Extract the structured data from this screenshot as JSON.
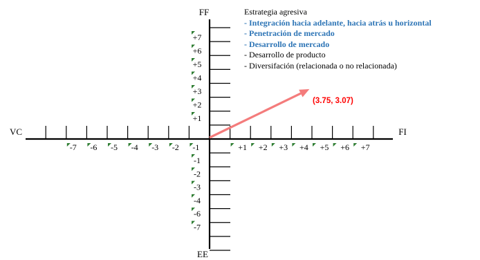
{
  "axes": {
    "top_label": "FF",
    "bottom_label": "EE",
    "left_label": "VC",
    "right_label": "FI",
    "x_positive_ticks": [
      "+1",
      "+2",
      "+3",
      "+4",
      "+5",
      "+6",
      "+7"
    ],
    "x_negative_ticks": [
      "-1",
      "-2",
      "-3",
      "-4",
      "-5",
      "-6",
      "-7"
    ],
    "y_positive_ticks": [
      "+1",
      "+2",
      "+3",
      "+4",
      "+5",
      "+6",
      "+7"
    ],
    "y_negative_ticks": [
      "-1",
      "-2",
      "-3",
      "-4",
      "-6",
      "-7"
    ]
  },
  "strategies": {
    "title": "Estrategia agresiva",
    "items": [
      {
        "text": "- Integración hacia adelante, hacia atrás u horizontal",
        "color": "#2E75B6",
        "bold": true
      },
      {
        "text": "- Penetración de mercado",
        "color": "#2E75B6",
        "bold": true
      },
      {
        "text": "- Desarrollo de mercado",
        "color": "#2E75B6",
        "bold": true
      },
      {
        "text": "- Desarrollo de producto",
        "color": "#000000",
        "bold": false
      },
      {
        "text": "- Diversifación (relacionada o no relacionada)",
        "color": "#000000",
        "bold": false
      }
    ]
  },
  "vector": {
    "label": "(3.75, 3.07)",
    "x": 3.75,
    "y": 3.07,
    "color": "#F47C7C",
    "label_color": "#FF0000"
  },
  "colors": {
    "axis": "#000000",
    "corner_mark": "#2E7D32"
  }
}
